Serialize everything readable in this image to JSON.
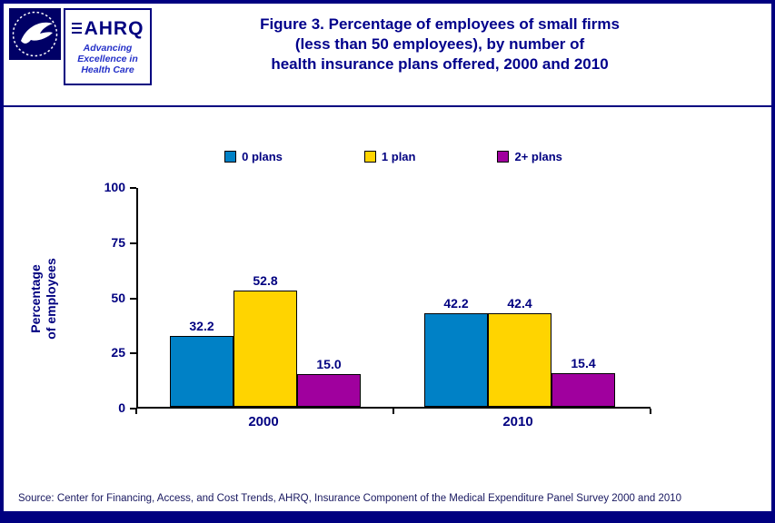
{
  "theme": {
    "accent_navy": "#000080",
    "title_color": "#00008B",
    "tagline_color": "#2430C8"
  },
  "header": {
    "hhs_logo": "hhs-seal",
    "ahrq": {
      "name": "AHRQ",
      "tagline": "Advancing\nExcellence in\nHealth Care"
    },
    "title": "Figure 3. Percentage of employees of small firms\n(less than 50 employees), by number of\nhealth insurance plans offered, 2000 and 2010"
  },
  "chart_data": {
    "type": "bar",
    "title": "Figure 3. Percentage of employees of small firms (less than 50 employees), by number of health insurance plans offered, 2000 and 2010",
    "categories": [
      "2000",
      "2010"
    ],
    "series": [
      {
        "name": "0 plans",
        "color": "#0081C6",
        "values": [
          32.2,
          42.2
        ]
      },
      {
        "name": "1 plan",
        "color": "#FFD400",
        "values": [
          52.8,
          42.4
        ]
      },
      {
        "name": "2+ plans",
        "color": "#A0009E",
        "values": [
          15.0,
          15.4
        ]
      }
    ],
    "ylabel": "Percentage of employees",
    "xlabel": "",
    "ylim": [
      0,
      100
    ],
    "yticks": [
      0,
      25,
      50,
      75,
      100
    ],
    "grid": false,
    "legend_position": "top",
    "value_labels": true
  },
  "footer": {
    "source": "Source: Center for Financing, Access, and Cost Trends, AHRQ, Insurance Component of the Medical Expenditure Panel Survey 2000 and 2010"
  }
}
